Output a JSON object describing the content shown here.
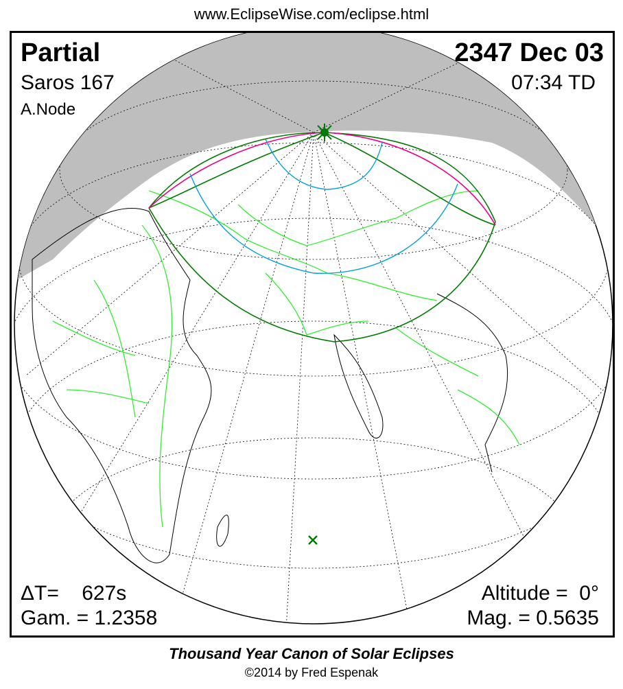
{
  "header_url": "www.EclipseWise.com/eclipse.html",
  "eclipse": {
    "type": "Partial",
    "date": "2347 Dec 03",
    "saros": "Saros 167",
    "time": "07:34 TD",
    "node": "A.Node",
    "delta_t": "ΔT=    627s",
    "gamma": "Gam. = 1.2358",
    "altitude": "Altitude =  0°",
    "magnitude": "Mag. = 0.5635"
  },
  "footer": {
    "title": "Thousand Year Canon of Solar Eclipses",
    "copyright": "©2014 by Fred Espenak"
  },
  "colors": {
    "night": "#bebebe",
    "borders": "#33ee33",
    "eclipse_limits": "#007a00",
    "magnitude_curves": "#00a0e0",
    "max_eclipse_curve": "#ee0088",
    "coastlines": "#000000"
  },
  "markers": {
    "greatest_eclipse": "star-green-icon",
    "sub_solar_point": "x-mark-icon"
  }
}
